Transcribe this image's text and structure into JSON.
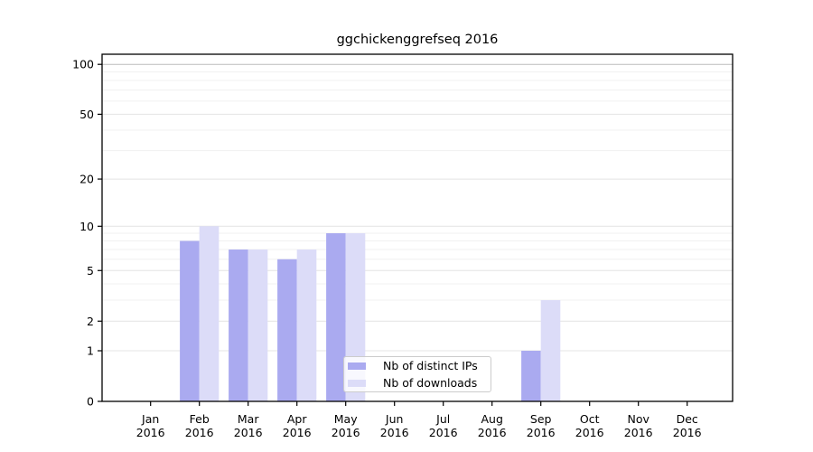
{
  "chart_data": {
    "type": "bar",
    "title": "ggchickenggrefseq 2016",
    "x_axis": {
      "months": [
        "Jan",
        "Feb",
        "Mar",
        "Apr",
        "May",
        "Jun",
        "Jul",
        "Aug",
        "Sep",
        "Oct",
        "Nov",
        "Dec"
      ],
      "year": "2016"
    },
    "y_axis": {
      "scale": "log1p",
      "ticks": [
        0,
        1,
        2,
        5,
        10,
        20,
        50,
        100
      ],
      "minor_ticks": [
        3,
        4,
        6,
        7,
        8,
        9,
        30,
        40,
        60,
        70,
        80,
        90
      ],
      "ylim": [
        0,
        114
      ],
      "grid": true
    },
    "series": [
      {
        "name": "Nb of distinct IPs",
        "color": "#aaaaf0",
        "values": [
          0,
          8,
          7,
          6,
          9,
          0,
          0,
          0,
          1,
          0,
          0,
          0
        ]
      },
      {
        "name": "Nb of downloads",
        "color": "#dcdcf8",
        "values": [
          0,
          10,
          7,
          7,
          9,
          0,
          0,
          0,
          3,
          0,
          0,
          0
        ]
      }
    ],
    "legend": {
      "position": "lower-center",
      "labels": [
        "Nb of distinct IPs",
        "Nb of downloads"
      ]
    }
  }
}
